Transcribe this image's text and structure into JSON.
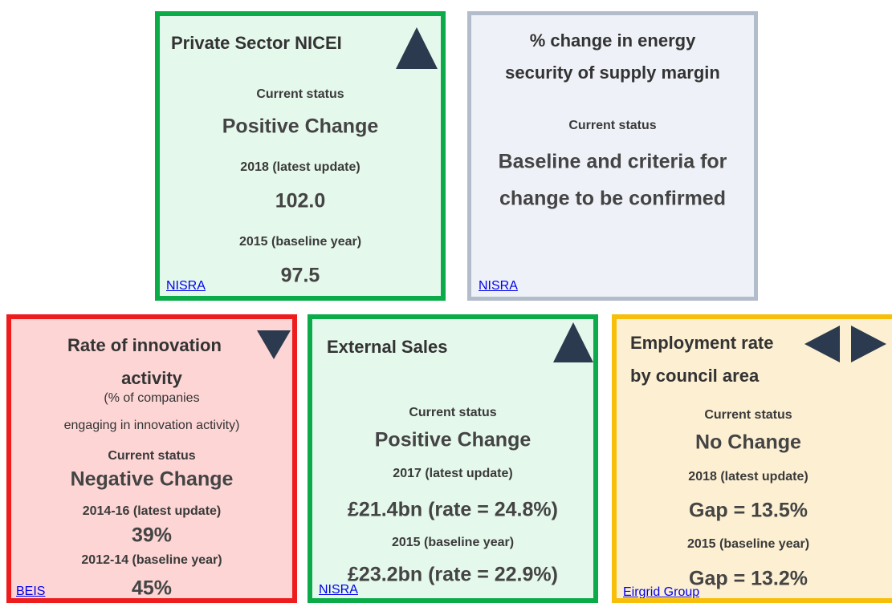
{
  "cards": [
    {
      "title_lines": [
        "Private Sector NICEI"
      ],
      "status_label": "Current status",
      "status": "Positive Change",
      "latest_label": "2018 (latest update)",
      "latest_value": "102.0",
      "baseline_label": "2015 (baseline year)",
      "baseline_value": "97.5",
      "source": "NISRA"
    },
    {
      "title_lines": [
        "% change in energy",
        "security of supply margin"
      ],
      "status_label": "Current status",
      "status_lines": [
        "Baseline and criteria for",
        "change to be confirmed"
      ],
      "source": "NISRA"
    },
    {
      "title_lines": [
        "Rate of innovation",
        "activity"
      ],
      "subtitle_lines": [
        "(% of companies",
        "engaging in innovation activity)"
      ],
      "status_label": "Current status",
      "status": "Negative Change",
      "latest_label": "2014-16 (latest update)",
      "latest_value": "39%",
      "baseline_label": "2012-14 (baseline year)",
      "baseline_value": "45%",
      "source": "BEIS"
    },
    {
      "title_lines": [
        "External Sales"
      ],
      "status_label": "Current status",
      "status": "Positive Change",
      "latest_label": "2017 (latest update)",
      "latest_value": "£21.4bn (rate = 24.8%)",
      "baseline_label": "2015 (baseline year)",
      "baseline_value": "£23.2bn (rate = 22.9%)",
      "source": "NISRA"
    },
    {
      "title_lines": [
        "Employment rate",
        "by council area"
      ],
      "status_label": "Current status",
      "status": "No Change",
      "latest_label": "2018 (latest update)",
      "latest_value": "Gap = 13.5%",
      "baseline_label": "2015 (baseline year)",
      "baseline_value": "Gap = 13.2%",
      "source": "Eirgrid Group"
    }
  ]
}
